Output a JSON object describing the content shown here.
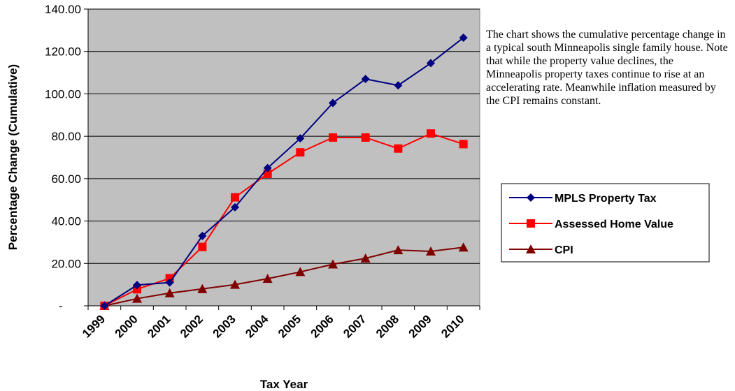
{
  "chart_data": {
    "type": "line",
    "title": "",
    "xlabel": "Tax Year",
    "ylabel": "Percentage Change (Cumulative)",
    "categories": [
      "1999",
      "2000",
      "2001",
      "2002",
      "2003",
      "2004",
      "2005",
      "2006",
      "2007",
      "2008",
      "2009",
      "2010"
    ],
    "ylim": [
      0,
      140
    ],
    "y_ticks": [
      0,
      20,
      40,
      60,
      80,
      100,
      120,
      140
    ],
    "y_tick_labels": [
      "-",
      "20.00",
      "40.00",
      "60.00",
      "80.00",
      "100.00",
      "120.00",
      "140.00"
    ],
    "grid": true,
    "plot_background": "#c0c0c0",
    "legend_position": "right",
    "series": [
      {
        "name": "MPLS  Property Tax",
        "color": "#000080",
        "marker": "diamond",
        "values": [
          0,
          9.8,
          11,
          33,
          46.5,
          65,
          79,
          95.7,
          107,
          104,
          114.5,
          126.5
        ]
      },
      {
        "name": "Assessed Home Value",
        "color": "#ff0000",
        "marker": "square",
        "values": [
          0,
          7.8,
          13,
          27.8,
          51.2,
          62.3,
          72.4,
          79.4,
          79.4,
          74.2,
          81.3,
          76.3
        ]
      },
      {
        "name": "CPI",
        "color": "#800000",
        "marker": "triangle",
        "values": [
          0,
          3.4,
          6,
          8,
          10,
          12.8,
          16,
          19.6,
          22.4,
          26.3,
          25.7,
          27.6
        ]
      }
    ]
  },
  "note": {
    "text": "The chart shows the cumulative percentage change in a typical south Minneapolis single family house.  Note that while the property value declines, the Minneapolis property taxes continue to rise at an accelerating rate.  Meanwhile inflation measured by the CPI remains constant."
  }
}
